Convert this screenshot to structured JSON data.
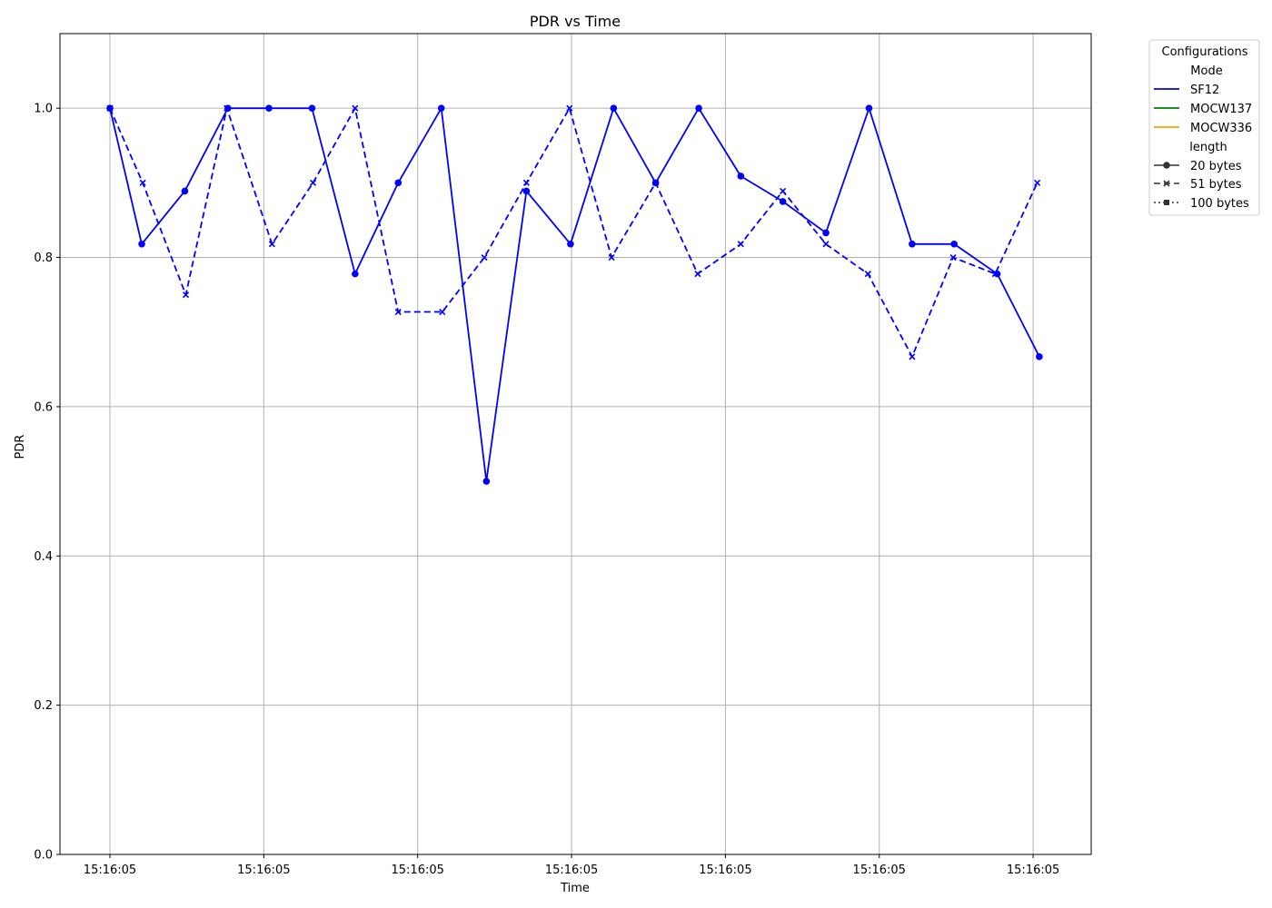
{
  "chart_data": {
    "type": "line",
    "title": "PDR vs Time",
    "xlabel": "Time",
    "ylabel": "PDR",
    "xlim": [
      0,
      1
    ],
    "ylim": [
      0,
      1.1
    ],
    "x_ticks": [
      {
        "x": 0.0,
        "label": "15:16:05"
      },
      {
        "x": 0.15,
        "label": "15:16:05"
      },
      {
        "x": 0.3,
        "label": "15:16:05"
      },
      {
        "x": 0.45,
        "label": "15:16:05"
      },
      {
        "x": 0.6,
        "label": "15:16:05"
      },
      {
        "x": 0.75,
        "label": "15:16:05"
      },
      {
        "x": 0.9,
        "label": "15:16:05"
      }
    ],
    "y_ticks": [
      {
        "y": 0.0,
        "label": "0.0"
      },
      {
        "y": 0.2,
        "label": "0.2"
      },
      {
        "y": 0.4,
        "label": "0.4"
      },
      {
        "y": 0.6,
        "label": "0.6"
      },
      {
        "y": 0.8,
        "label": "0.8"
      },
      {
        "y": 1.0,
        "label": "1.0"
      }
    ],
    "grid": true,
    "legend": {
      "title": "Configurations",
      "placement": "outside right",
      "mode_header": "Mode",
      "length_header": "length",
      "modes": [
        {
          "label": "SF12",
          "color": "#0000ff"
        },
        {
          "label": "MOCW137",
          "color": "#008000"
        },
        {
          "label": "MOCW336",
          "color": "#ffa500"
        }
      ],
      "lengths": [
        {
          "label": "20 bytes",
          "dash": "solid",
          "marker": "circle"
        },
        {
          "label": "51 bytes",
          "dash": "dashed",
          "marker": "x"
        },
        {
          "label": "100 bytes",
          "dash": "dotted",
          "marker": "square"
        }
      ]
    },
    "series": [
      {
        "mode": "SF12",
        "length": "20 bytes",
        "color": "#0000ff",
        "dash": "solid",
        "marker": "circle",
        "x": [
          0.0,
          0.031,
          0.073,
          0.115,
          0.155,
          0.197,
          0.239,
          0.281,
          0.323,
          0.367,
          0.406,
          0.449,
          0.491,
          0.532,
          0.574,
          0.615,
          0.656,
          0.698,
          0.74,
          0.782,
          0.823,
          0.865,
          0.906
        ],
        "y": [
          1.0,
          0.818,
          0.889,
          1.0,
          1.0,
          1.0,
          0.778,
          0.9,
          1.0,
          0.5,
          0.889,
          0.818,
          1.0,
          0.9,
          1.0,
          0.909,
          0.875,
          0.833,
          1.0,
          0.818,
          0.818,
          0.778,
          0.667
        ]
      },
      {
        "mode": "SF12",
        "length": "51 bytes",
        "color": "#0000ff",
        "dash": "dashed",
        "marker": "x",
        "x": [
          0.0,
          0.032,
          0.074,
          0.114,
          0.158,
          0.198,
          0.239,
          0.281,
          0.324,
          0.365,
          0.406,
          0.448,
          0.489,
          0.532,
          0.573,
          0.615,
          0.656,
          0.698,
          0.739,
          0.782,
          0.822,
          0.863,
          0.904
        ],
        "y": [
          1.0,
          0.9,
          0.75,
          1.0,
          0.818,
          0.9,
          1.0,
          0.727,
          0.727,
          0.8,
          0.9,
          1.0,
          0.8,
          0.9,
          0.778,
          0.818,
          0.889,
          0.818,
          0.778,
          0.667,
          0.8,
          0.778,
          0.9
        ]
      }
    ]
  }
}
